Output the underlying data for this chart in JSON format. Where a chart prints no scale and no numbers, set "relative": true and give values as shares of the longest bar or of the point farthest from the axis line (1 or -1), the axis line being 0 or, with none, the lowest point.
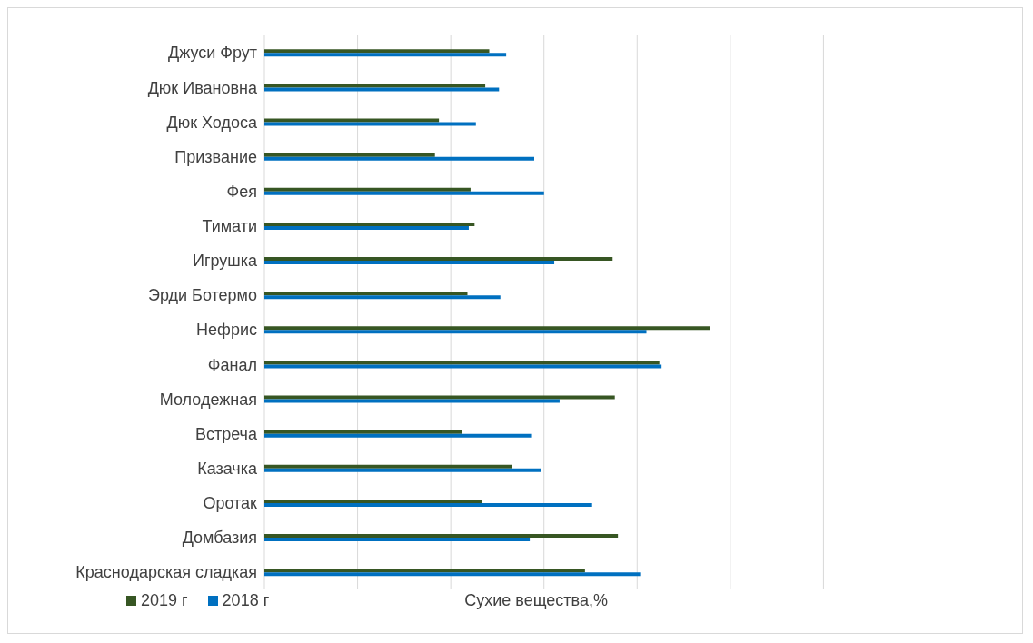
{
  "chart_data": {
    "type": "bar",
    "orientation": "horizontal",
    "relative": true,
    "xlabel": "Сухие вещества,%",
    "grid": "x",
    "legend": "bottom left",
    "categories": [
      "Джуси Фрут",
      "Дюк Ивановна",
      "Дюк Ходоса",
      "Призвание",
      "Фея",
      "Тимати",
      "Игрушка",
      "Эрди Ботермо",
      "Нефрис",
      "Фанал",
      "Молодежная",
      "Встреча",
      "Казачка",
      "Оротак",
      "Домбазия",
      "Краснодарская сладкая"
    ],
    "series": [
      {
        "name": "2019 г",
        "color": "#375623",
        "values": [
          0.505,
          0.496,
          0.392,
          0.383,
          0.463,
          0.472,
          0.782,
          0.456,
          1,
          0.887,
          0.787,
          0.443,
          0.555,
          0.489,
          0.794,
          0.72
        ]
      },
      {
        "name": "2018 г",
        "color": "#0070c0",
        "values": [
          0.543,
          0.527,
          0.475,
          0.606,
          0.628,
          0.459,
          0.651,
          0.53,
          0.858,
          0.892,
          0.663,
          0.601,
          0.622,
          0.736,
          0.596,
          0.844
        ]
      }
    ]
  }
}
